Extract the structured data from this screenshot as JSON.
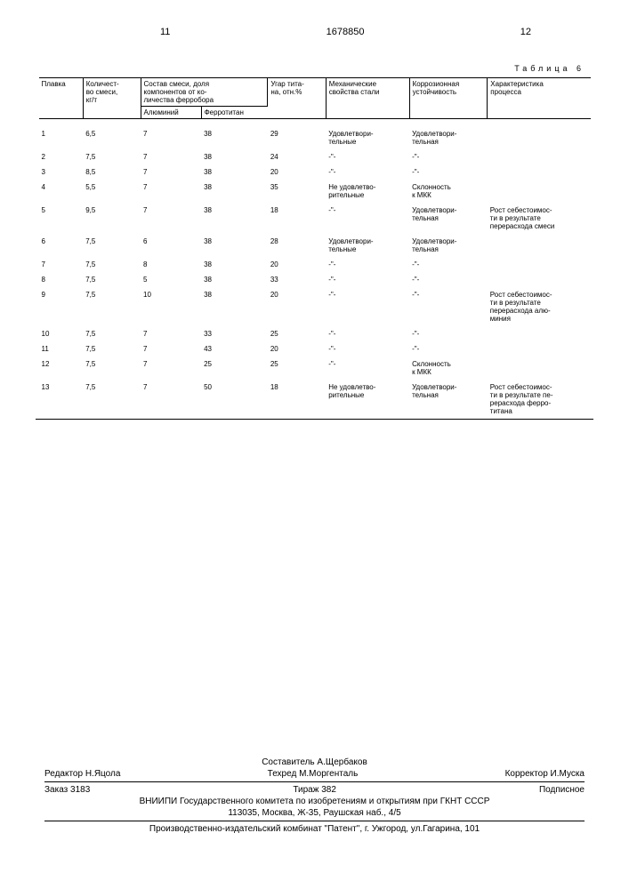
{
  "page_left": "11",
  "doc_number": "1678850",
  "page_right": "12",
  "table_caption": "Таблица 6",
  "headers": {
    "col1": "Плавка",
    "col2": "Количест-\nво смеси,\nкг/т",
    "col3": "Состав смеси, доля\nкомпонентов от ко-\nличества ферробора",
    "col3a": "Алюминий",
    "col3b": "Ферротитан",
    "col4": "Угар тита-\nна, отн.%",
    "col5": "Механические\nсвойства стали",
    "col6": "Коррозионная\nустойчивость",
    "col7": "Характеристика\nпроцесса"
  },
  "rows": [
    {
      "n": "1",
      "q": "6,5",
      "al": "7",
      "ft": "38",
      "ugar": "29",
      "mech": "Удовлетвори-\nтельные",
      "corr": "Удовлетвори-\nтельная",
      "proc": ""
    },
    {
      "n": "2",
      "q": "7,5",
      "al": "7",
      "ft": "38",
      "ugar": "24",
      "mech": "-\"-",
      "corr": "-\"-",
      "proc": ""
    },
    {
      "n": "3",
      "q": "8,5",
      "al": "7",
      "ft": "38",
      "ugar": "20",
      "mech": "-\"-",
      "corr": "-\"-",
      "proc": ""
    },
    {
      "n": "4",
      "q": "5,5",
      "al": "7",
      "ft": "38",
      "ugar": "35",
      "mech": "Не удовлетво-\nрительные",
      "corr": "Склонность\nк МКК",
      "proc": ""
    },
    {
      "n": "5",
      "q": "9,5",
      "al": "7",
      "ft": "38",
      "ugar": "18",
      "mech": "-\"-",
      "corr": "Удовлетвори-\nтельная",
      "proc": "Рост себестоимос-\nти в результате\nперерасхода смеси"
    },
    {
      "n": "6",
      "q": "7,5",
      "al": "6",
      "ft": "38",
      "ugar": "28",
      "mech": "Удовлетвори-\nтельные",
      "corr": "Удовлетвори-\nтельная",
      "proc": ""
    },
    {
      "n": "7",
      "q": "7,5",
      "al": "8",
      "ft": "38",
      "ugar": "20",
      "mech": "-\"-",
      "corr": "-\"-",
      "proc": ""
    },
    {
      "n": "8",
      "q": "7,5",
      "al": "5",
      "ft": "38",
      "ugar": "33",
      "mech": "-\"-",
      "corr": "-\"-",
      "proc": ""
    },
    {
      "n": "9",
      "q": "7,5",
      "al": "10",
      "ft": "38",
      "ugar": "20",
      "mech": "-\"-",
      "corr": "-\"-",
      "proc": "Рост себестоимос-\nти в результате\nперерасхода алю-\nминия"
    },
    {
      "n": "10",
      "q": "7,5",
      "al": "7",
      "ft": "33",
      "ugar": "25",
      "mech": "-\"-",
      "corr": "-\"-",
      "proc": ""
    },
    {
      "n": "11",
      "q": "7,5",
      "al": "7",
      "ft": "43",
      "ugar": "20",
      "mech": "-\"-",
      "corr": "-\"-",
      "proc": ""
    },
    {
      "n": "12",
      "q": "7,5",
      "al": "7",
      "ft": "25",
      "ugar": "25",
      "mech": "-\"-",
      "corr": "Склонность\nк МКК",
      "proc": ""
    },
    {
      "n": "13",
      "q": "7,5",
      "al": "7",
      "ft": "50",
      "ugar": "18",
      "mech": "Не удовлетво-\nрительные",
      "corr": "Удовлетвори-\nтельная",
      "proc": "Рост себестоимос-\nти в результате пе-\nрерасхода ферро-\nтитана"
    }
  ],
  "footer": {
    "compiler": "Составитель А.Щербаков",
    "editor": "Редактор Н.Яцола",
    "tech": "Техред М.Моргенталь",
    "corrector": "Корректор И.Муска",
    "order": "Заказ 3183",
    "tirage": "Тираж 382",
    "subscription": "Подписное",
    "org": "ВНИИПИ Государственного комитета по изобретениям и открытиям при ГКНТ СССР",
    "address": "113035, Москва, Ж-35, Раушская наб., 4/5",
    "printer": "Производственно-издательский комбинат \"Патент\", г. Ужгород, ул.Гагарина, 101"
  }
}
